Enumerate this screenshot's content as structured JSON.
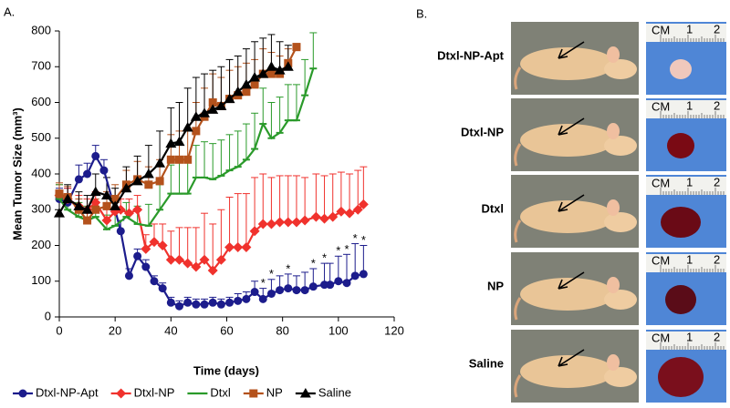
{
  "chart_data": {
    "type": "line",
    "panel_label": "A.",
    "x_label": "Time (days)",
    "y_label": "Mean Tumor Size (mm³)",
    "xlim": [
      0,
      120
    ],
    "xticks": [
      0,
      20,
      40,
      60,
      80,
      100,
      120
    ],
    "ylim": [
      0,
      800
    ],
    "yticks": [
      0,
      100,
      200,
      300,
      400,
      500,
      600,
      700,
      800
    ],
    "legend": "bottom",
    "series": [
      {
        "name": "Dtxl-NP-Apt",
        "color": "#1c1c8c",
        "marker": "circle",
        "x": [
          0,
          3,
          7,
          10,
          13,
          16,
          20,
          22,
          25,
          28,
          31,
          34,
          37,
          40,
          43,
          46,
          49,
          52,
          55,
          58,
          61,
          64,
          67,
          70,
          73,
          76,
          79,
          82,
          85,
          88,
          91,
          95,
          97,
          100,
          103,
          106,
          109
        ],
        "values": [
          330,
          320,
          385,
          400,
          450,
          410,
          300,
          240,
          115,
          170,
          140,
          100,
          80,
          40,
          30,
          40,
          35,
          35,
          40,
          35,
          40,
          45,
          50,
          70,
          50,
          65,
          75,
          80,
          75,
          75,
          85,
          90,
          90,
          100,
          95,
          115,
          120
        ],
        "errors": [
          30,
          40,
          40,
          30,
          30,
          30,
          40,
          30,
          20,
          20,
          20,
          15,
          15,
          15,
          15,
          15,
          15,
          15,
          15,
          15,
          15,
          20,
          20,
          30,
          30,
          40,
          40,
          40,
          40,
          50,
          50,
          60,
          60,
          70,
          80,
          90,
          80
        ]
      },
      {
        "name": "Dtxl-NP",
        "color": "#f0322d",
        "marker": "diamond",
        "x": [
          0,
          3,
          7,
          10,
          13,
          17,
          20,
          22,
          25,
          28,
          31,
          34,
          37,
          40,
          43,
          46,
          49,
          52,
          55,
          58,
          61,
          64,
          67,
          70,
          73,
          76,
          79,
          82,
          85,
          88,
          92,
          95,
          98,
          101,
          104,
          107,
          109
        ],
        "values": [
          340,
          330,
          310,
          300,
          320,
          270,
          295,
          300,
          290,
          300,
          190,
          210,
          200,
          160,
          160,
          150,
          140,
          160,
          130,
          160,
          195,
          195,
          195,
          240,
          260,
          260,
          265,
          265,
          265,
          270,
          280,
          275,
          280,
          295,
          290,
          300,
          315
        ],
        "errors": [
          30,
          30,
          30,
          30,
          30,
          30,
          30,
          30,
          40,
          40,
          40,
          50,
          60,
          80,
          90,
          100,
          110,
          130,
          130,
          140,
          140,
          150,
          150,
          150,
          140,
          130,
          130,
          130,
          130,
          120,
          120,
          120,
          120,
          110,
          110,
          110,
          105
        ]
      },
      {
        "name": "Dtxl",
        "color": "#2a9a2a",
        "marker": "dash",
        "x": [
          0,
          3,
          7,
          10,
          13,
          17,
          20,
          24,
          28,
          32,
          36,
          40,
          43,
          46,
          49,
          52,
          55,
          58,
          61,
          64,
          67,
          70,
          73,
          76,
          79,
          82,
          85,
          88,
          91
        ],
        "values": [
          330,
          300,
          280,
          270,
          280,
          245,
          255,
          280,
          260,
          255,
          300,
          345,
          345,
          345,
          390,
          390,
          385,
          395,
          410,
          420,
          440,
          470,
          540,
          500,
          515,
          550,
          550,
          620,
          695
        ],
        "errors": [
          40,
          40,
          40,
          40,
          40,
          40,
          40,
          40,
          50,
          60,
          70,
          80,
          90,
          90,
          90,
          100,
          100,
          100,
          100,
          100,
          100,
          100,
          100,
          100,
          100,
          100,
          100,
          100,
          100
        ]
      },
      {
        "name": "NP",
        "color": "#b4521c",
        "marker": "square",
        "x": [
          0,
          3,
          7,
          10,
          13,
          17,
          20,
          24,
          28,
          32,
          36,
          40,
          43,
          46,
          49,
          52,
          55,
          58,
          61,
          64,
          67,
          70,
          73,
          76,
          79,
          82,
          85
        ],
        "values": [
          345,
          335,
          300,
          270,
          300,
          310,
          330,
          370,
          385,
          370,
          380,
          440,
          440,
          440,
          520,
          560,
          600,
          590,
          610,
          620,
          630,
          650,
          680,
          680,
          680,
          710,
          755
        ],
        "errors": [
          30,
          30,
          30,
          30,
          30,
          40,
          40,
          40,
          50,
          50,
          60,
          70,
          80,
          80,
          80,
          80,
          80,
          80,
          80,
          80,
          80,
          70,
          70,
          60,
          50,
          40,
          10
        ]
      },
      {
        "name": "Saline",
        "color": "#000000",
        "marker": "triangle",
        "x": [
          0,
          3,
          7,
          10,
          13,
          17,
          20,
          24,
          28,
          32,
          36,
          40,
          43,
          46,
          49,
          52,
          55,
          58,
          61,
          64,
          67,
          70,
          73,
          76,
          79,
          82
        ],
        "values": [
          290,
          330,
          310,
          300,
          350,
          340,
          310,
          360,
          380,
          400,
          430,
          485,
          490,
          530,
          560,
          570,
          580,
          590,
          610,
          630,
          650,
          670,
          680,
          700,
          690,
          700
        ],
        "errors": [
          40,
          40,
          40,
          40,
          50,
          50,
          50,
          60,
          70,
          80,
          90,
          100,
          110,
          110,
          110,
          110,
          110,
          110,
          110,
          100,
          100,
          100,
          100,
          90,
          80,
          60
        ]
      }
    ],
    "significance": {
      "text": "*",
      "series": 0,
      "x": [
        73,
        76,
        82,
        91,
        95,
        100,
        103,
        106,
        109
      ]
    }
  },
  "panel_b": {
    "panel_label": "B.",
    "ruler_labels": [
      "CM",
      "1",
      "2"
    ],
    "rows": [
      {
        "label": "Dtxl-NP-Apt"
      },
      {
        "label": "Dtxl-NP"
      },
      {
        "label": "Dtxl"
      },
      {
        "label": "NP"
      },
      {
        "label": "Saline"
      }
    ]
  }
}
